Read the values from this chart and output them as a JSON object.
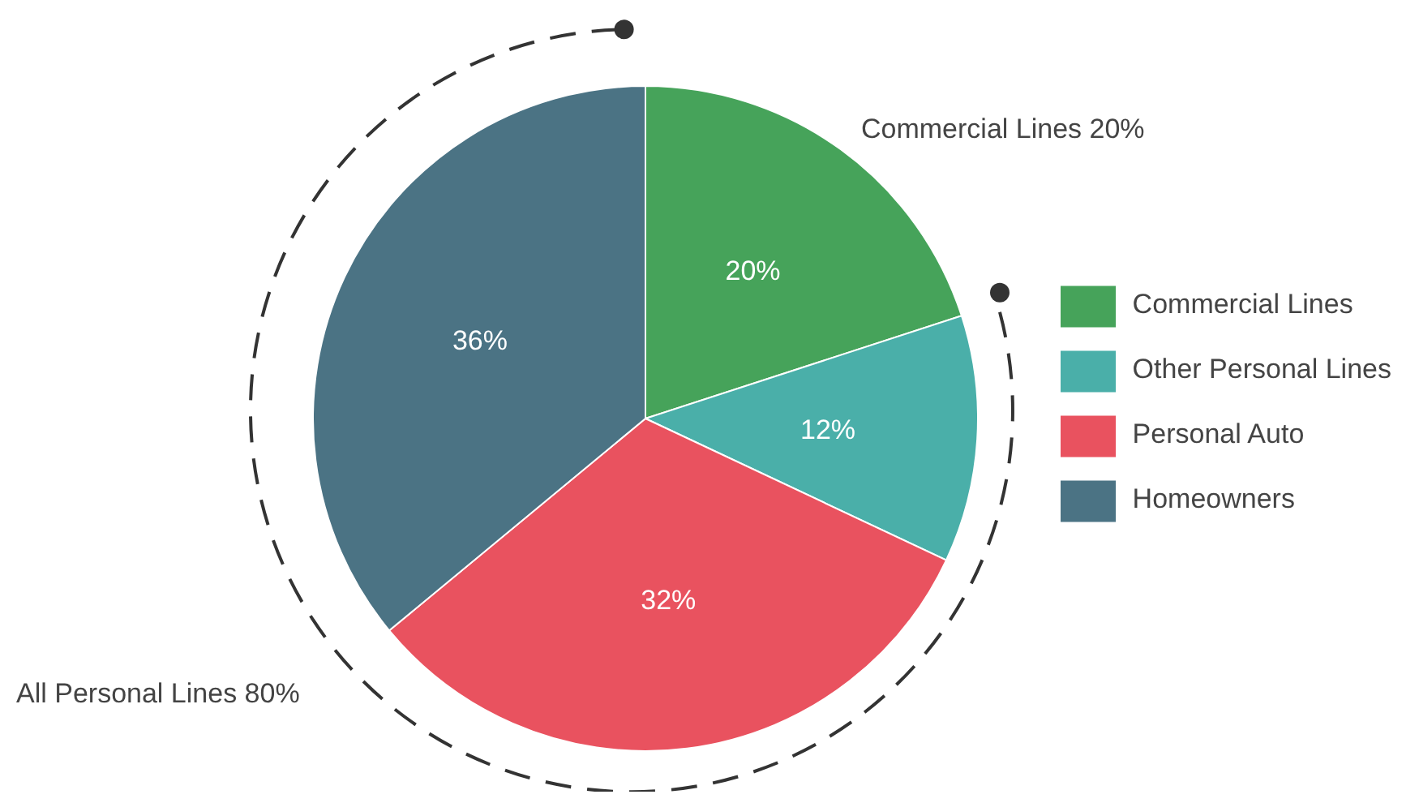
{
  "chart_data": {
    "type": "pie",
    "categories": [
      "Commercial Lines",
      "Other Personal Lines",
      "Personal Auto",
      "Homeowners"
    ],
    "values": [
      20,
      12,
      32,
      36
    ],
    "value_labels": [
      "20%",
      "12%",
      "32%",
      "36%"
    ],
    "colors": [
      "#46a35a",
      "#4aafa9",
      "#e9525f",
      "#4b7384"
    ],
    "annotations": [
      "Commercial Lines 20%",
      "All Personal Lines 80%"
    ],
    "legend": "right"
  }
}
